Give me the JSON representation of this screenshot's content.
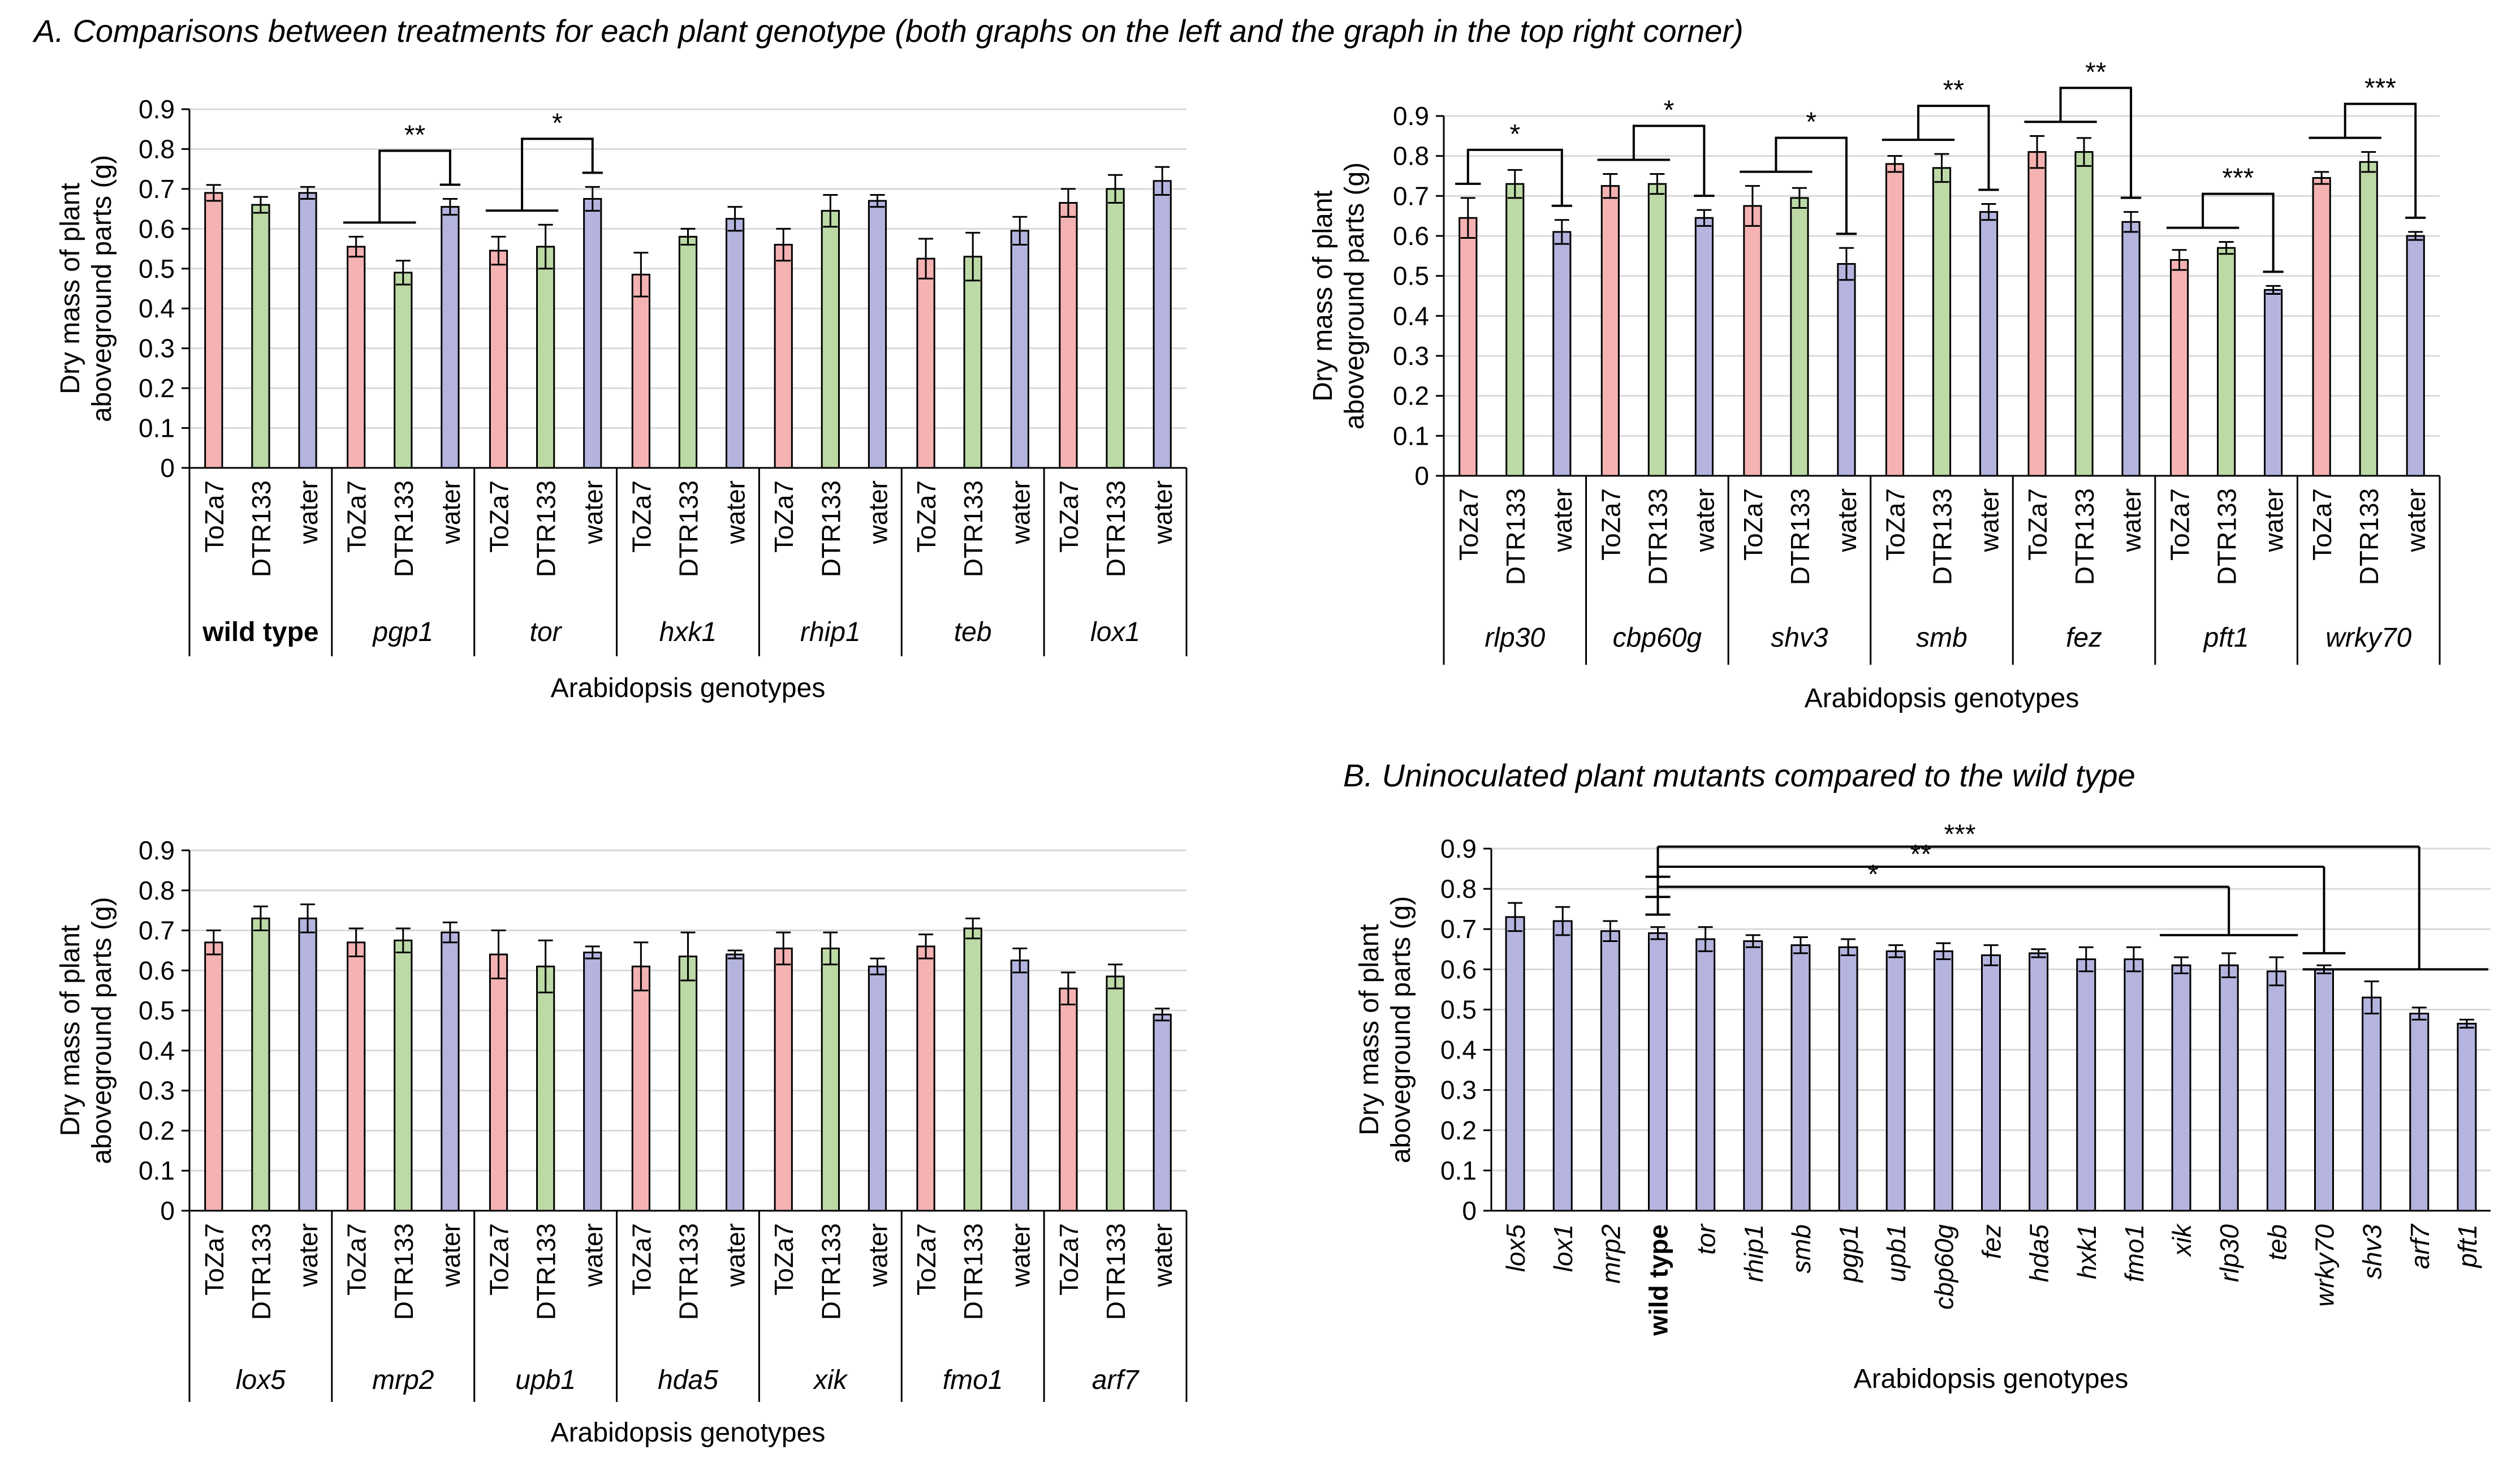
{
  "panel_a_title": "A. Comparisons between treatments for each plant genotype (both graphs on the left and the graph in the top right corner)",
  "panel_b_title": "B. Uninoculated plant mutants compared to the wild type",
  "treatments": [
    "ToZa7",
    "DTR133",
    "water"
  ],
  "colors": {
    "ToZa7": "#f4b2b2",
    "DTR133": "#bcd9a6",
    "water": "#b4b4df",
    "edge": "#000000",
    "grid": "#d9d9d9"
  },
  "chart_data": [
    {
      "type": "bar",
      "id": "c1",
      "ylabel": [
        "Dry mass of plant",
        "aboveground parts (g)"
      ],
      "xlabel": "Arabidopsis genotypes",
      "ylim": [
        0,
        0.9
      ],
      "yticks": [
        "0",
        "0.1",
        "0.2",
        "0.3",
        "0.4",
        "0.5",
        "0.6",
        "0.7",
        "0.8",
        "0.9"
      ],
      "grid": true,
      "groups": [
        {
          "name": "wild type",
          "bold": true,
          "italic": false,
          "values": [
            0.69,
            0.66,
            0.69
          ],
          "errors": [
            0.02,
            0.02,
            0.015
          ]
        },
        {
          "name": "pgp1",
          "values": [
            0.555,
            0.49,
            0.655
          ],
          "errors": [
            0.025,
            0.03,
            0.02
          ]
        },
        {
          "name": "tor",
          "values": [
            0.545,
            0.555,
            0.675
          ],
          "errors": [
            0.035,
            0.055,
            0.03
          ]
        },
        {
          "name": "hxk1",
          "values": [
            0.485,
            0.58,
            0.625
          ],
          "errors": [
            0.055,
            0.02,
            0.03
          ]
        },
        {
          "name": "rhip1",
          "values": [
            0.56,
            0.645,
            0.67
          ],
          "errors": [
            0.04,
            0.04,
            0.015
          ]
        },
        {
          "name": "teb",
          "values": [
            0.525,
            0.53,
            0.595
          ],
          "errors": [
            0.05,
            0.06,
            0.035
          ]
        },
        {
          "name": "lox1",
          "values": [
            0.665,
            0.7,
            0.72
          ],
          "errors": [
            0.035,
            0.035,
            0.035
          ]
        }
      ],
      "sig": [
        {
          "label": "**",
          "left": [
            1,
            0,
            1
          ],
          "right": [
            1,
            2
          ]
        },
        {
          "label": "*",
          "left": [
            2,
            0,
            1
          ],
          "right": [
            2,
            2
          ]
        }
      ]
    },
    {
      "type": "bar",
      "id": "c2",
      "ylabel": [
        "Dry mass of plant",
        "aboveground parts (g)"
      ],
      "xlabel": "Arabidopsis genotypes",
      "ylim": [
        0,
        0.9
      ],
      "yticks": [
        "0",
        "0.1",
        "0.2",
        "0.3",
        "0.4",
        "0.5",
        "0.6",
        "0.7",
        "0.8",
        "0.9"
      ],
      "grid": true,
      "groups": [
        {
          "name": "rlp30",
          "values": [
            0.645,
            0.73,
            0.61
          ],
          "errors": [
            0.05,
            0.035,
            0.03
          ]
        },
        {
          "name": "cbp60g",
          "values": [
            0.725,
            0.73,
            0.645
          ],
          "errors": [
            0.03,
            0.025,
            0.02
          ]
        },
        {
          "name": "shv3",
          "values": [
            0.675,
            0.695,
            0.53
          ],
          "errors": [
            0.05,
            0.025,
            0.04
          ]
        },
        {
          "name": "smb",
          "values": [
            0.78,
            0.77,
            0.66
          ],
          "errors": [
            0.02,
            0.035,
            0.02
          ]
        },
        {
          "name": "fez",
          "values": [
            0.81,
            0.81,
            0.635
          ],
          "errors": [
            0.04,
            0.035,
            0.025
          ]
        },
        {
          "name": "pft1",
          "values": [
            0.54,
            0.57,
            0.465
          ],
          "errors": [
            0.025,
            0.015,
            0.01
          ]
        },
        {
          "name": "wrky70",
          "values": [
            0.745,
            0.785,
            0.6
          ],
          "errors": [
            0.015,
            0.025,
            0.01
          ]
        }
      ],
      "sig": [
        {
          "label": "*",
          "left": [
            0,
            0
          ],
          "right": [
            0,
            2
          ]
        },
        {
          "label": "*",
          "left": [
            1,
            0,
            1
          ],
          "right": [
            1,
            2
          ]
        },
        {
          "label": "*",
          "left": [
            2,
            0,
            1
          ],
          "right": [
            2,
            2
          ]
        },
        {
          "label": "**",
          "left": [
            3,
            0,
            1
          ],
          "right": [
            3,
            2
          ]
        },
        {
          "label": "**",
          "left": [
            4,
            0,
            1
          ],
          "right": [
            4,
            2
          ]
        },
        {
          "label": "***",
          "left": [
            5,
            0,
            1
          ],
          "right": [
            5,
            2
          ]
        },
        {
          "label": "***",
          "left": [
            6,
            0,
            1
          ],
          "right": [
            6,
            2
          ]
        }
      ]
    },
    {
      "type": "bar",
      "id": "c3",
      "ylabel": [
        "Dry mass of plant",
        "aboveground parts (g)"
      ],
      "xlabel": "Arabidopsis genotypes",
      "ylim": [
        0,
        0.9
      ],
      "yticks": [
        "0",
        "0.1",
        "0.2",
        "0.3",
        "0.4",
        "0.5",
        "0.6",
        "0.7",
        "0.8",
        "0.9"
      ],
      "grid": true,
      "groups": [
        {
          "name": "lox5",
          "values": [
            0.67,
            0.73,
            0.73
          ],
          "errors": [
            0.03,
            0.03,
            0.035
          ]
        },
        {
          "name": "mrp2",
          "values": [
            0.67,
            0.675,
            0.695
          ],
          "errors": [
            0.035,
            0.03,
            0.025
          ]
        },
        {
          "name": "upb1",
          "values": [
            0.64,
            0.61,
            0.645
          ],
          "errors": [
            0.06,
            0.065,
            0.015
          ]
        },
        {
          "name": "hda5",
          "values": [
            0.61,
            0.635,
            0.64
          ],
          "errors": [
            0.06,
            0.06,
            0.01
          ]
        },
        {
          "name": "xik",
          "values": [
            0.655,
            0.655,
            0.61
          ],
          "errors": [
            0.04,
            0.04,
            0.02
          ]
        },
        {
          "name": "fmo1",
          "values": [
            0.66,
            0.705,
            0.625
          ],
          "errors": [
            0.03,
            0.025,
            0.03
          ]
        },
        {
          "name": "arf7",
          "values": [
            0.555,
            0.585,
            0.49
          ],
          "errors": [
            0.04,
            0.03,
            0.015
          ]
        }
      ],
      "sig": []
    },
    {
      "type": "bar",
      "id": "c4",
      "ylabel": [
        "Dry mass of plant",
        "aboveground parts (g)"
      ],
      "xlabel": "Arabidopsis genotypes",
      "ylim": [
        0,
        0.9
      ],
      "yticks": [
        "0",
        "0.1",
        "0.2",
        "0.3",
        "0.4",
        "0.5",
        "0.6",
        "0.7",
        "0.8",
        "0.9"
      ],
      "grid": true,
      "categories": [
        "lox5",
        "lox1",
        "mrp2",
        "wild type",
        "tor",
        "rhip1",
        "smb",
        "pgp1",
        "upb1",
        "cbp60g",
        "fez",
        "hda5",
        "hxk1",
        "fmo1",
        "xik",
        "rlp30",
        "teb",
        "wrky70",
        "shv3",
        "arf7",
        "pft1"
      ],
      "bold_category": "wild type",
      "series": [
        {
          "name": "water",
          "values": [
            0.73,
            0.72,
            0.695,
            0.69,
            0.675,
            0.67,
            0.66,
            0.655,
            0.645,
            0.645,
            0.635,
            0.64,
            0.625,
            0.625,
            0.61,
            0.61,
            0.595,
            0.6,
            0.53,
            0.49,
            0.465
          ],
          "errors": [
            0.035,
            0.035,
            0.025,
            0.015,
            0.03,
            0.015,
            0.02,
            0.02,
            0.015,
            0.02,
            0.025,
            0.01,
            0.03,
            0.03,
            0.02,
            0.03,
            0.035,
            0.01,
            0.04,
            0.015,
            0.01
          ]
        }
      ],
      "sig": [
        {
          "label": "*",
          "from": 3,
          "to_range": [
            14,
            16
          ],
          "target_ref": 15
        },
        {
          "label": "**",
          "from": 3,
          "to_range": [
            17,
            17
          ],
          "target_ref": 17
        },
        {
          "label": "***",
          "from": 3,
          "to_range": [
            17,
            20
          ],
          "target_ref": 19
        }
      ]
    }
  ]
}
